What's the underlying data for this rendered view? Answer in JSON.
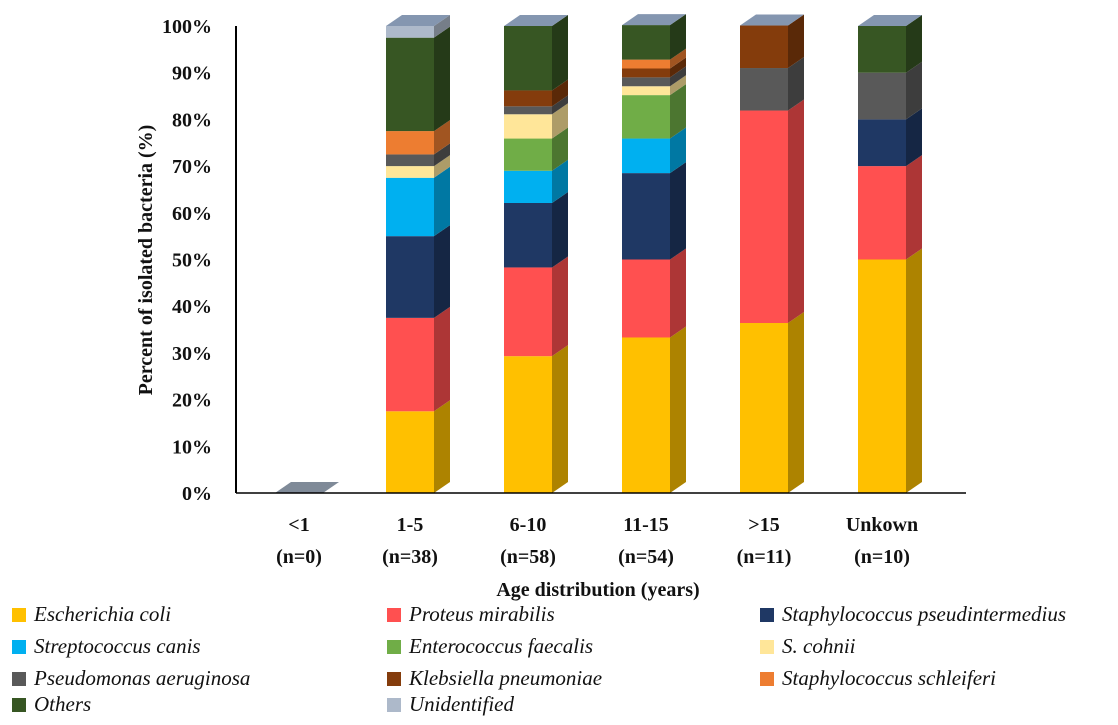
{
  "chart_data": {
    "type": "bar",
    "stacked": true,
    "three_d": true,
    "xlabel": "Age distribution  (years)",
    "ylabel": "Percent of isolated bacteria (%)",
    "ylim": [
      0,
      100
    ],
    "y_tick_labels": [
      "0%",
      "10%",
      "20%",
      "30%",
      "40%",
      "50%",
      "60%",
      "70%",
      "80%",
      "90%",
      "100%"
    ],
    "grid": false,
    "legend_position": "bottom",
    "categories": [
      {
        "label": "<1",
        "n": "(n=0)"
      },
      {
        "label": "1-5",
        "n": "(n=38)"
      },
      {
        "label": "6-10",
        "n": "(n=58)"
      },
      {
        "label": "11-15",
        "n": "(n=54)"
      },
      {
        "label": ">15",
        "n": "(n=11)"
      },
      {
        "label": "Unkown",
        "n": "(n=10)"
      }
    ],
    "series": [
      {
        "name": "Escherichia coli",
        "color": "#FFC000",
        "values": [
          0,
          17.5,
          29.3,
          33.3,
          36.4,
          50.0
        ]
      },
      {
        "name": "Proteus mirabilis",
        "color": "#FF5050",
        "values": [
          0,
          20.0,
          19.0,
          16.7,
          45.5,
          20.0
        ]
      },
      {
        "name": "Staphylococcus pseudintermedius",
        "color": "#1F3864",
        "values": [
          0,
          17.5,
          13.8,
          18.5,
          0,
          10.0
        ]
      },
      {
        "name": "Streptococcus canis",
        "color": "#00B0F0",
        "values": [
          0,
          12.5,
          6.9,
          7.4,
          0,
          0
        ]
      },
      {
        "name": "Enterococcus faecalis",
        "color": "#70AD47",
        "values": [
          0,
          0,
          6.9,
          9.3,
          0,
          0
        ]
      },
      {
        "name": "S. cohnii",
        "color": "#FFE699",
        "values": [
          0,
          2.5,
          5.2,
          1.9,
          0,
          0
        ]
      },
      {
        "name": "Pseudomonas aeruginosa",
        "color": "#595959",
        "values": [
          0,
          2.5,
          1.7,
          1.9,
          9.1,
          10.0
        ]
      },
      {
        "name": "Klebsiella pneumoniae",
        "color": "#843C0C",
        "values": [
          0,
          0,
          3.4,
          1.9,
          9.1,
          0
        ]
      },
      {
        "name": "Staphylococcus schleiferi",
        "color": "#ED7D31",
        "values": [
          0,
          5.0,
          0,
          1.9,
          0,
          0
        ]
      },
      {
        "name": "Others",
        "color": "#375623",
        "values": [
          0,
          20.0,
          13.8,
          7.4,
          0,
          10.0
        ]
      },
      {
        "name": "Unidentified",
        "color": "#ADB9CA",
        "values": [
          0,
          2.5,
          0,
          0,
          0,
          0
        ]
      }
    ]
  }
}
